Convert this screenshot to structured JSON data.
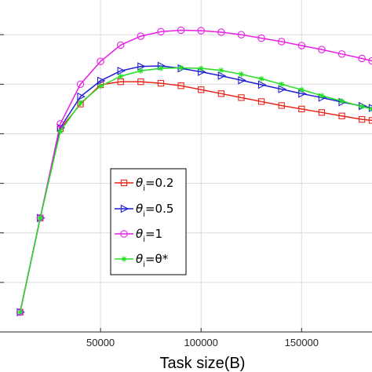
{
  "chart_data": {
    "type": "line",
    "title": "",
    "xlabel": "Task size(B)",
    "ylabel": "",
    "xlim": [
      0,
      185000
    ],
    "ylim": [
      0,
      6.7
    ],
    "x_ticks": [
      50000,
      100000,
      150000
    ],
    "x_tick_labels": [
      "50000",
      "100000",
      "150000"
    ],
    "y_ticks": [
      1,
      2,
      3,
      4,
      5,
      6
    ],
    "grid": true,
    "legend_position": "center-left",
    "x": [
      10000,
      20000,
      30000,
      40000,
      50000,
      60000,
      70000,
      80000,
      90000,
      100000,
      110000,
      120000,
      130000,
      140000,
      150000,
      160000,
      170000,
      180000,
      185000
    ],
    "series": [
      {
        "name": "θi=0.2",
        "legend_symbol": "θ",
        "legend_sub": "i",
        "legend_rest": "=0.2",
        "color": "#e8241a",
        "marker": "square",
        "values": [
          0.4,
          2.3,
          4.1,
          4.6,
          4.99,
          5.05,
          5.05,
          5.02,
          4.97,
          4.89,
          4.81,
          4.73,
          4.65,
          4.57,
          4.5,
          4.43,
          4.36,
          4.29,
          4.27
        ]
      },
      {
        "name": "θi=0.5",
        "legend_symbol": "θ",
        "legend_sub": "i",
        "legend_rest": "=0.5",
        "color": "#1f1fd6",
        "marker": "triangle-right",
        "values": [
          0.4,
          2.3,
          4.12,
          4.75,
          5.07,
          5.27,
          5.36,
          5.37,
          5.32,
          5.25,
          5.17,
          5.08,
          4.99,
          4.9,
          4.81,
          4.73,
          4.64,
          4.56,
          4.52
        ]
      },
      {
        "name": "θi=1",
        "legend_symbol": "θ",
        "legend_sub": "i",
        "legend_rest": "=1",
        "color": "#e61ee6",
        "marker": "circle",
        "values": [
          0.4,
          2.3,
          4.2,
          5.0,
          5.46,
          5.79,
          5.97,
          6.06,
          6.09,
          6.08,
          6.05,
          6.0,
          5.93,
          5.86,
          5.78,
          5.7,
          5.61,
          5.52,
          5.47
        ]
      },
      {
        "name": "θi=θ*",
        "legend_symbol": "θ",
        "legend_sub": "i",
        "legend_rest": "=θ*",
        "color": "#22e022",
        "marker": "asterisk",
        "values": [
          0.4,
          2.3,
          4.05,
          4.62,
          4.96,
          5.16,
          5.27,
          5.32,
          5.33,
          5.32,
          5.28,
          5.2,
          5.11,
          5.0,
          4.89,
          4.77,
          4.66,
          4.55,
          4.5
        ]
      }
    ]
  }
}
